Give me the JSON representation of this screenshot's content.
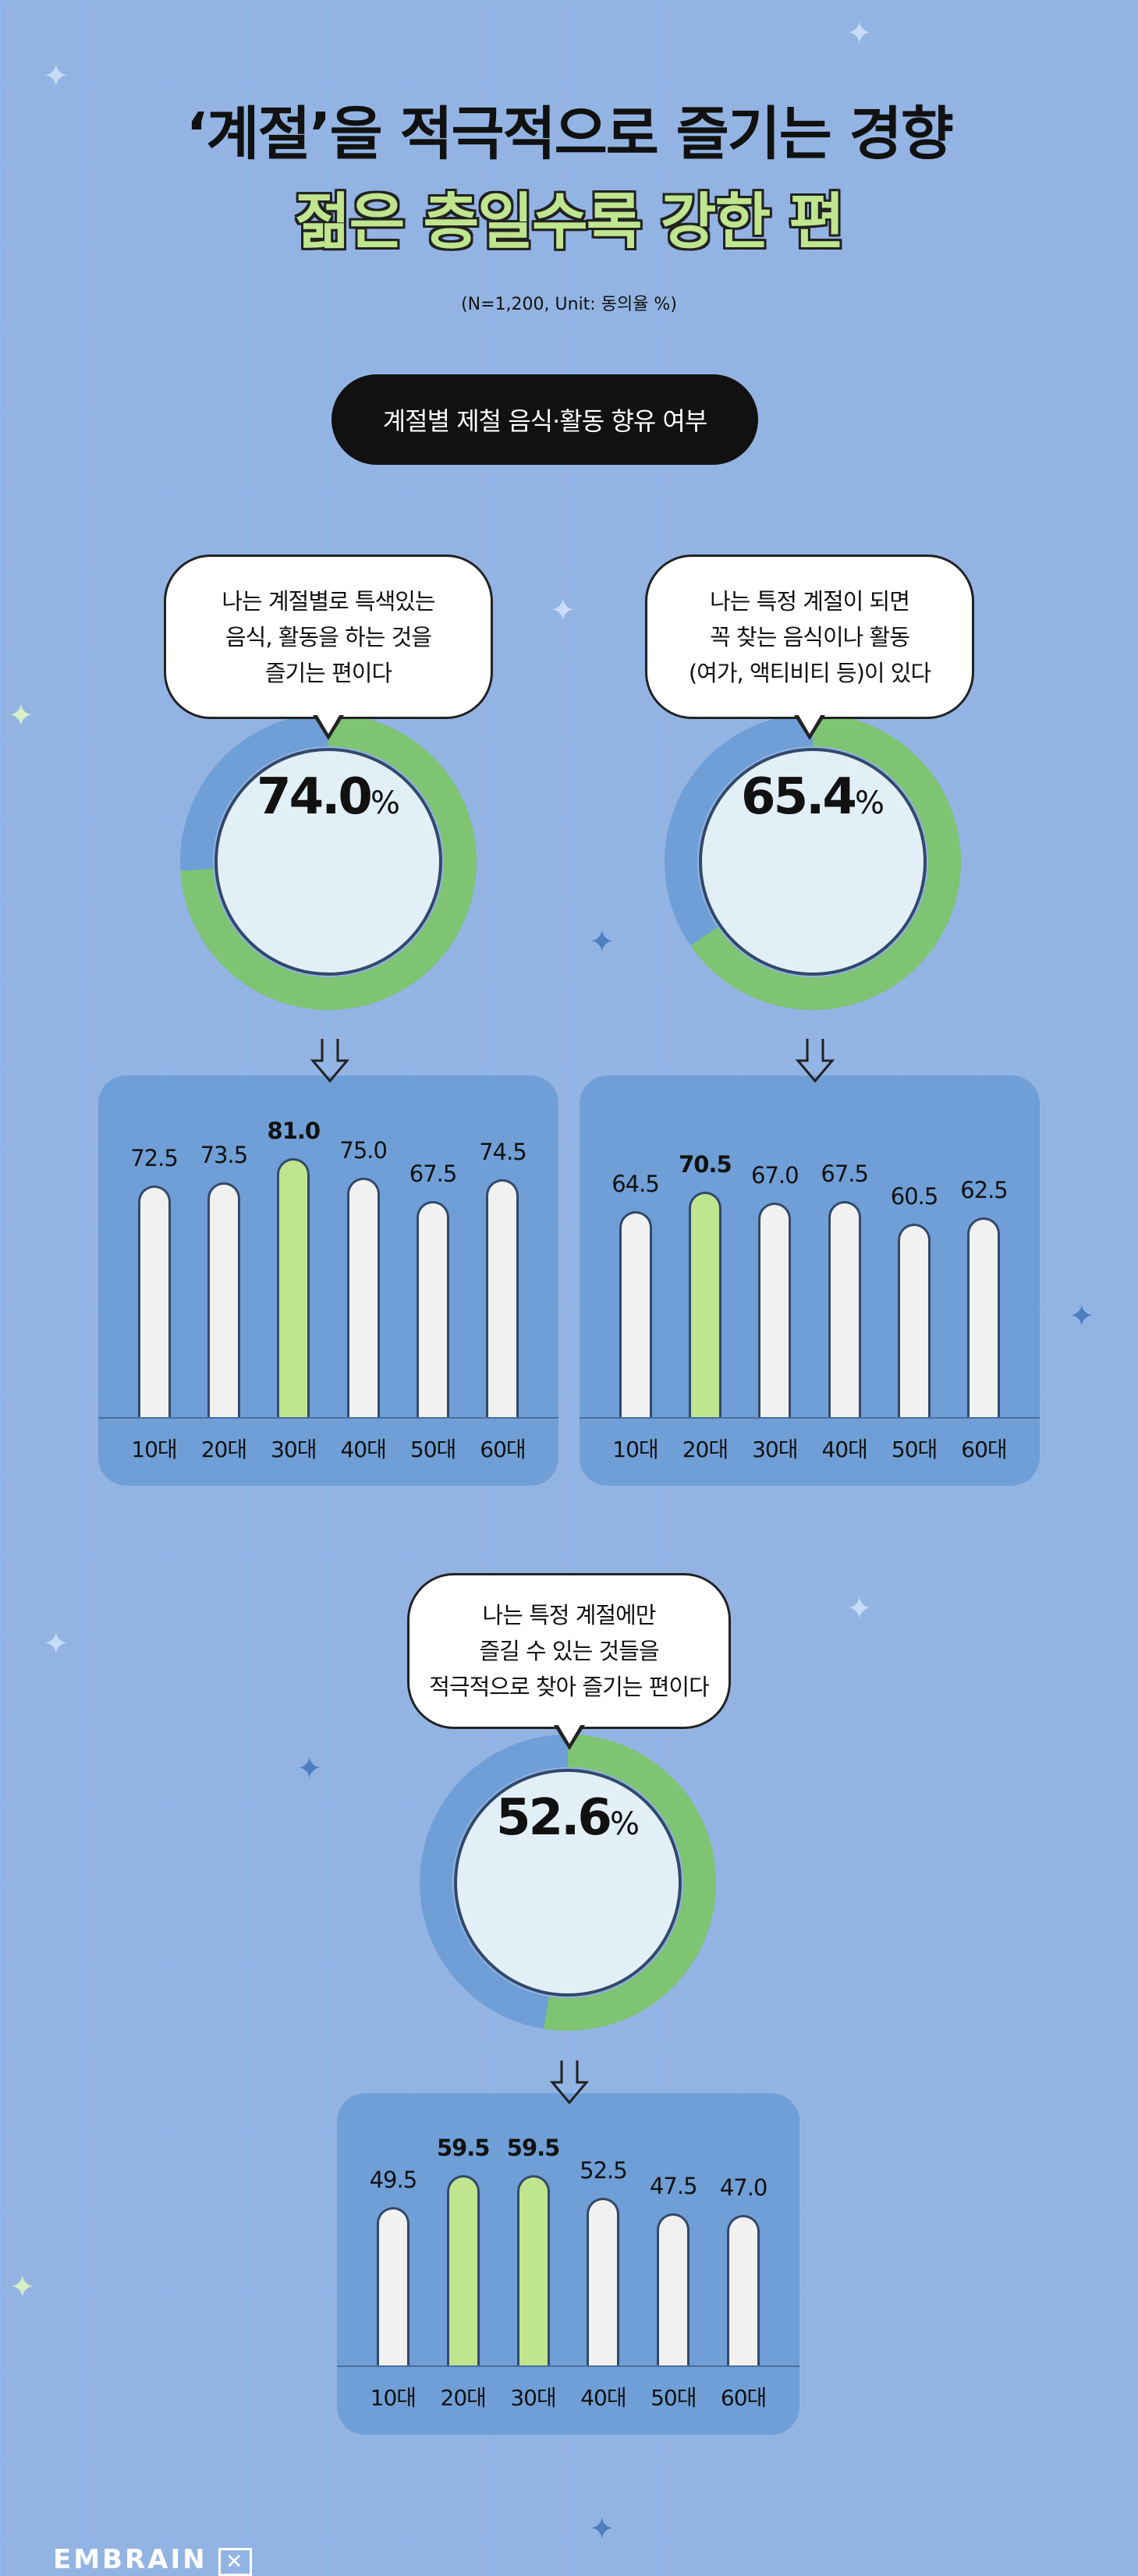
{
  "header": {
    "title_line1": "‘계절’을 적극적으로 즐기는 경향",
    "title_line2": "젊은 층일수록 강한 편",
    "subtitle": "(N=1,200, Unit: 동의율 %)",
    "section_label": "계절별 제철 음식·활동 향유 여부"
  },
  "colors": {
    "background": "#93b4e3",
    "agree": "#7ec472",
    "disagree": "#6f9fd6",
    "bar_default": "#f1f1f1",
    "bar_highlight": "#bfe58e",
    "title_accent": "#bfe58e"
  },
  "brand": {
    "logo": "EMBRAIN"
  },
  "chart_data": [
    {
      "type": "donut+bar",
      "statement_lines": [
        "나는 계절별로 특색있는",
        "음식, 활동을 하는 것을",
        "즐기는 편이다"
      ],
      "total": "74.0",
      "unit": "%",
      "categories": [
        "10대",
        "20대",
        "30대",
        "40대",
        "50대",
        "60대"
      ],
      "values": [
        72.5,
        73.5,
        81.0,
        75.0,
        67.5,
        74.5
      ],
      "value_labels": [
        "72.5",
        "73.5",
        "81.0",
        "75.0",
        "67.5",
        "74.5"
      ],
      "highlight": [
        2
      ]
    },
    {
      "type": "donut+bar",
      "statement_lines": [
        "나는 특정 계절이 되면",
        "꼭 찾는 음식이나 활동",
        "(여가, 액티비티 등)이 있다"
      ],
      "total": "65.4",
      "unit": "%",
      "categories": [
        "10대",
        "20대",
        "30대",
        "40대",
        "50대",
        "60대"
      ],
      "values": [
        64.5,
        70.5,
        67.0,
        67.5,
        60.5,
        62.5
      ],
      "value_labels": [
        "64.5",
        "70.5",
        "67.0",
        "67.5",
        "60.5",
        "62.5"
      ],
      "highlight": [
        1
      ]
    },
    {
      "type": "donut+bar",
      "statement_lines": [
        "나는 특정 계절에만",
        "즐길 수 있는 것들을",
        "적극적으로 찾아 즐기는 편이다"
      ],
      "total": "52.6",
      "unit": "%",
      "categories": [
        "10대",
        "20대",
        "30대",
        "40대",
        "50대",
        "60대"
      ],
      "values": [
        49.5,
        59.5,
        59.5,
        52.5,
        47.5,
        47.0
      ],
      "value_labels": [
        "49.5",
        "59.5",
        "59.5",
        "52.5",
        "47.5",
        "47.0"
      ],
      "highlight": [
        1,
        2
      ]
    }
  ]
}
